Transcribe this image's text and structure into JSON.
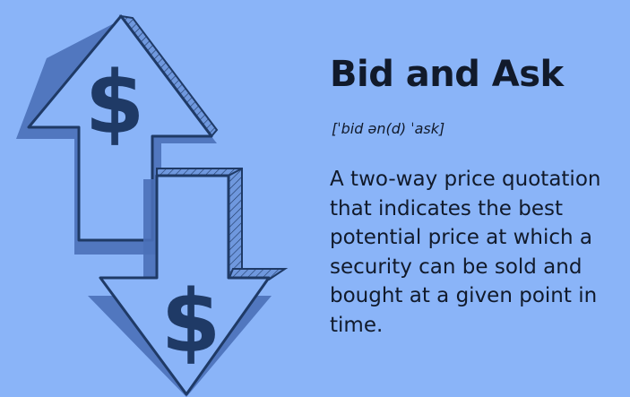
{
  "title": "Bid and Ask",
  "pronunciation": "[ˈbid ən(d) ˈask]",
  "definition": "A two-way price quotation that indicates the best potential price at which a security can be sold and bought at a given point in time.",
  "illustration": {
    "up_arrow_symbol": "$",
    "down_arrow_symbol": "$"
  },
  "colors": {
    "background": "#8ab4f8",
    "outline": "#1f3a66",
    "shadow": "#4a70b8",
    "text": "#111a2b"
  }
}
